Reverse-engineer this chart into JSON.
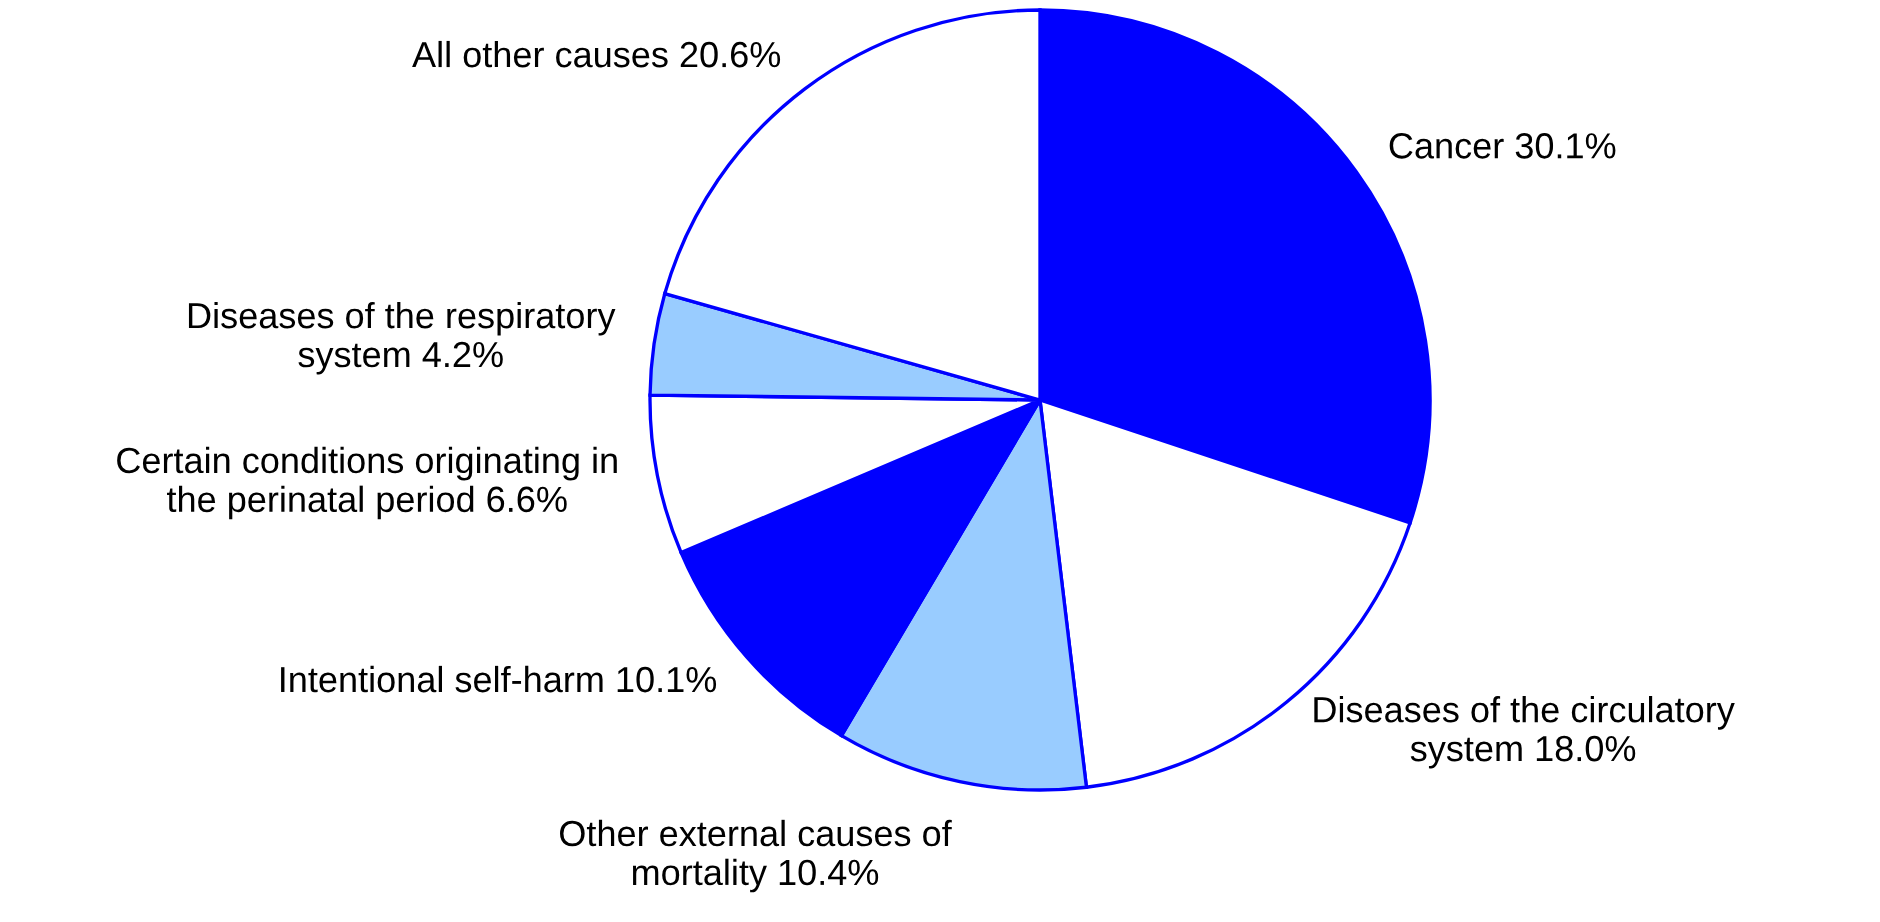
{
  "chart_data": {
    "type": "pie",
    "categories": [
      "Cancer",
      "Diseases of the circulatory\nsystem",
      "Other external causes of\nmortality",
      "Intentional self-harm",
      "Certain conditions originating in\nthe perinatal period",
      "Diseases of the respiratory\nsystem",
      "All other causes"
    ],
    "values": [
      30.1,
      18.0,
      10.4,
      10.1,
      6.6,
      4.2,
      20.6
    ],
    "value_labels": [
      "30.1%",
      "18.0%",
      "10.4%",
      "10.1%",
      "6.6%",
      "4.2%",
      "20.6%"
    ],
    "colors": [
      "#0000ff",
      "#ffffff",
      "#99ccff",
      "#0000ff",
      "#ffffff",
      "#99ccff",
      "#ffffff"
    ],
    "legend": false
  }
}
